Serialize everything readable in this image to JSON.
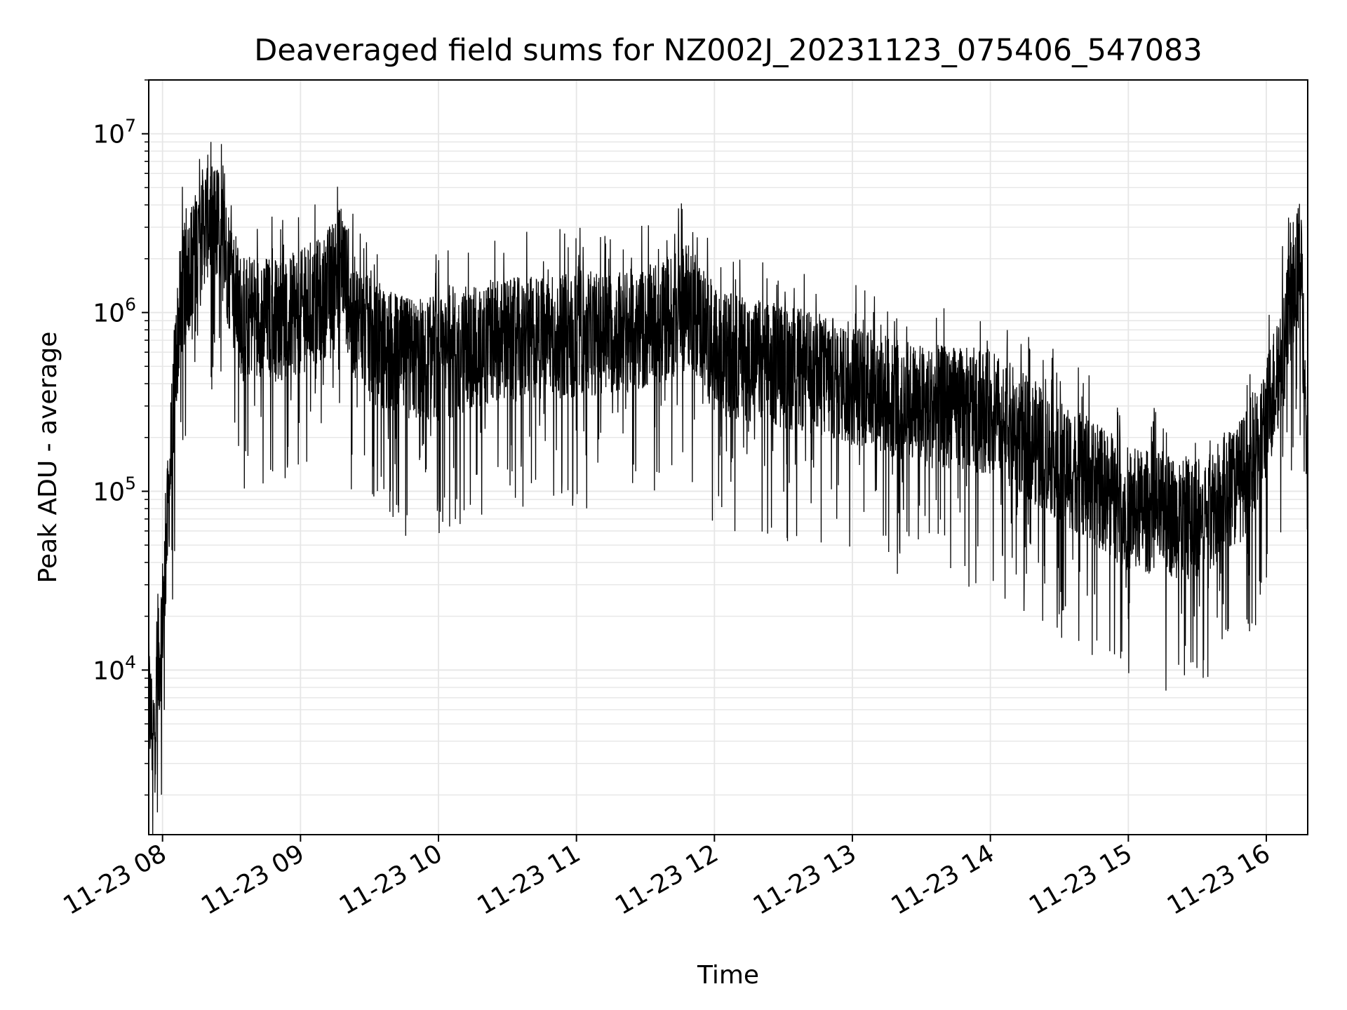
{
  "chart_data": {
    "type": "line",
    "title": "Deaveraged field sums for NZ002J_20231123_075406_547083",
    "xlabel": "Time",
    "ylabel": "Peak ADU - average",
    "yscale": "log",
    "ylim": [
      1200,
      20000000
    ],
    "xlim": [
      "2023-11-23 07:54",
      "2023-11-23 16:18"
    ],
    "grid": true,
    "line_color": "#000000",
    "grid_color": "#e6e6e6",
    "x_ticks": [
      "11-23 08",
      "11-23 09",
      "11-23 10",
      "11-23 11",
      "11-23 12",
      "11-23 13",
      "11-23 14",
      "11-23 15",
      "11-23 16"
    ],
    "y_ticks": [
      {
        "base": "10",
        "exp": "4",
        "value": 10000
      },
      {
        "base": "10",
        "exp": "5",
        "value": 100000
      },
      {
        "base": "10",
        "exp": "6",
        "value": 1000000
      },
      {
        "base": "10",
        "exp": "7",
        "value": 10000000
      }
    ],
    "series": [
      {
        "x": [
          "2023-11-23 07:54",
          "2023-11-23 07:56",
          "2023-11-23 07:58",
          "2023-11-23 08:00",
          "2023-11-23 08:02",
          "2023-11-23 08:04",
          "2023-11-23 08:06",
          "2023-11-23 08:08",
          "2023-11-23 08:10",
          "2023-11-23 08:15",
          "2023-11-23 08:20",
          "2023-11-23 08:25",
          "2023-11-23 08:30",
          "2023-11-23 08:35",
          "2023-11-23 08:40",
          "2023-11-23 08:50",
          "2023-11-23 09:00",
          "2023-11-23 09:10",
          "2023-11-23 09:18",
          "2023-11-23 09:22",
          "2023-11-23 09:30",
          "2023-11-23 09:45",
          "2023-11-23 10:00",
          "2023-11-23 10:30",
          "2023-11-23 11:00",
          "2023-11-23 11:30",
          "2023-11-23 11:50",
          "2023-11-23 12:00",
          "2023-11-23 12:30",
          "2023-11-23 13:00",
          "2023-11-23 13:30",
          "2023-11-23 14:00",
          "2023-11-23 14:30",
          "2023-11-23 14:50",
          "2023-11-23 15:00",
          "2023-11-23 15:30",
          "2023-11-23 15:50",
          "2023-11-23 16:00",
          "2023-11-23 16:08",
          "2023-11-23 16:12",
          "2023-11-23 16:15",
          "2023-11-23 16:18"
        ],
        "values": [
          7000,
          4000,
          9000,
          20000,
          60000,
          200000,
          600000,
          1200000,
          1500000,
          2500000,
          3500000,
          3000000,
          1500000,
          900000,
          1000000,
          900000,
          1000000,
          1200000,
          2000000,
          1000000,
          700000,
          550000,
          550000,
          700000,
          750000,
          800000,
          1100000,
          600000,
          500000,
          400000,
          300000,
          280000,
          150000,
          100000,
          80000,
          70000,
          120000,
          250000,
          700000,
          1500000,
          2000000,
          90000
        ]
      }
    ]
  }
}
